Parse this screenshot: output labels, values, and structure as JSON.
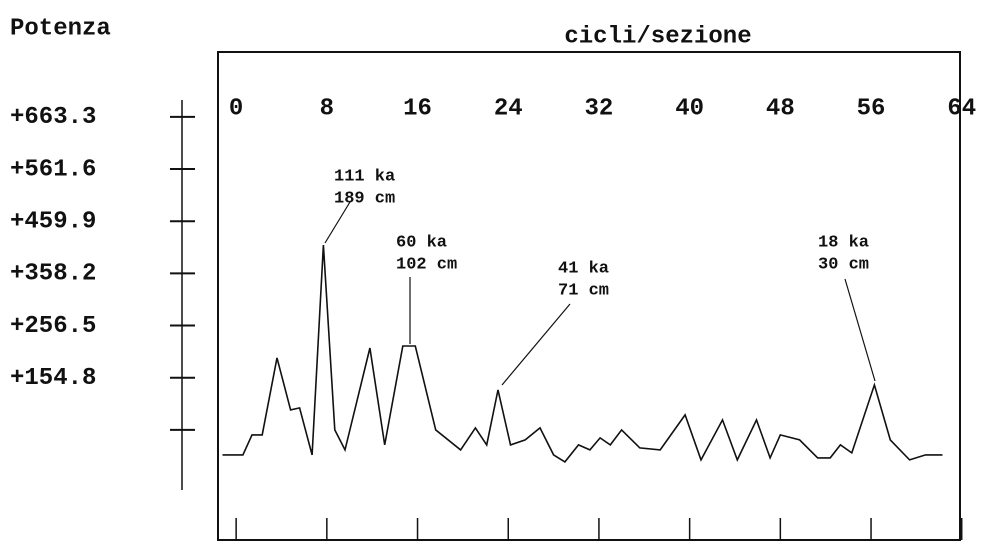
{
  "chart_data": {
    "type": "line",
    "y_label": "Potenza",
    "x_label": "cicli/sezione",
    "xlim": [
      -1.6,
      64.2
    ],
    "xticks": [
      0,
      8,
      16,
      24,
      32,
      40,
      48,
      56,
      64
    ],
    "ylim": [
      -64,
      700
    ],
    "yticks": [
      {
        "value": 663.3,
        "label": "+663.3"
      },
      {
        "value": 561.6,
        "label": "+561.6"
      },
      {
        "value": 459.9,
        "label": "+459.9"
      },
      {
        "value": 358.2,
        "label": "+358.2"
      },
      {
        "value": 256.5,
        "label": "+256.5"
      },
      {
        "value": 154.8,
        "label": "+154.8"
      },
      {
        "value": 53.1,
        "label": null
      }
    ],
    "color": "#111111",
    "x": [
      -1.2,
      0.6,
      1.4,
      2.3,
      3.6,
      4.8,
      5.6,
      6.7,
      7.7,
      8.7,
      9.6,
      11.8,
      13.1,
      14.7,
      15.8,
      17.6,
      19.8,
      21.1,
      22.1,
      23.1,
      24.2,
      25.5,
      26.8,
      28.0,
      29.0,
      30.2,
      31.2,
      32.1,
      33.0,
      34.0,
      35.6,
      37.4,
      39.6,
      41.0,
      42.9,
      44.2,
      45.9,
      47.1,
      48.0,
      49.7,
      51.3,
      52.4,
      53.3,
      54.3,
      56.3,
      57.7,
      59.4,
      60.8,
      62.3
    ],
    "values": [
      4.4,
      4.4,
      43.4,
      43.4,
      193.4,
      92.1,
      96,
      4.4,
      413.5,
      53.1,
      14.1,
      212.8,
      23.9,
      216.7,
      216.7,
      53.1,
      14.1,
      57,
      23.9,
      131,
      23.9,
      33.6,
      57,
      4.4,
      -9.2,
      23.9,
      14.1,
      37.5,
      23.9,
      53.1,
      18.0,
      14.1,
      82.3,
      -5.3,
      72.6,
      -5.3,
      72.6,
      -1.4,
      43.4,
      33.6,
      -1.4,
      -1.4,
      23.9,
      8.3,
      140.8,
      33.6,
      -5.3,
      4.4,
      4.4
    ],
    "annotations": [
      {
        "lines": [
          "111 ka",
          "189 cm"
        ]
      },
      {
        "lines": [
          "60 ka",
          "102 cm"
        ]
      },
      {
        "lines": [
          "41 ka",
          "71 cm"
        ]
      },
      {
        "lines": [
          "18 ka",
          "30 cm"
        ]
      }
    ]
  }
}
